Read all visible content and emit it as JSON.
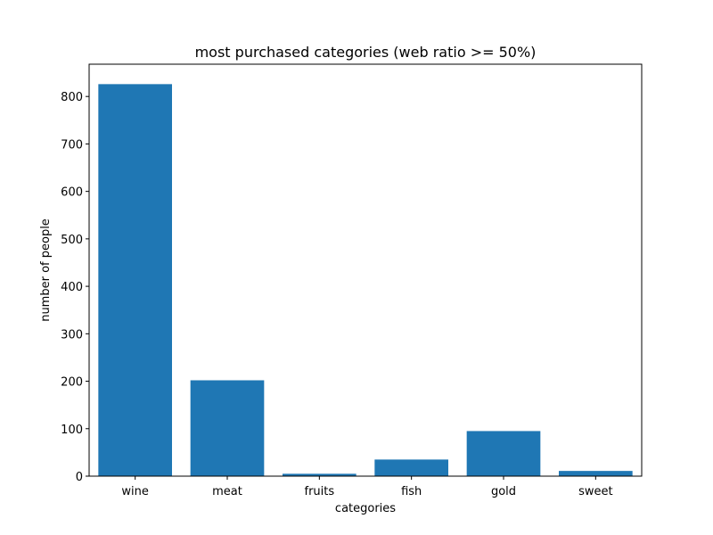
{
  "chart_data": {
    "type": "bar",
    "title": "most purchased categories (web ratio >= 50%)",
    "xlabel": "categories",
    "ylabel": "number of people",
    "categories": [
      "wine",
      "meat",
      "fruits",
      "fish",
      "gold",
      "sweet"
    ],
    "values": [
      826,
      202,
      5,
      35,
      95,
      11
    ],
    "ylim": [
      0,
      868
    ],
    "yticks": [
      0,
      100,
      200,
      300,
      400,
      500,
      600,
      700,
      800
    ],
    "bar_color": "#1f77b4",
    "grid": false,
    "legend": "none"
  }
}
